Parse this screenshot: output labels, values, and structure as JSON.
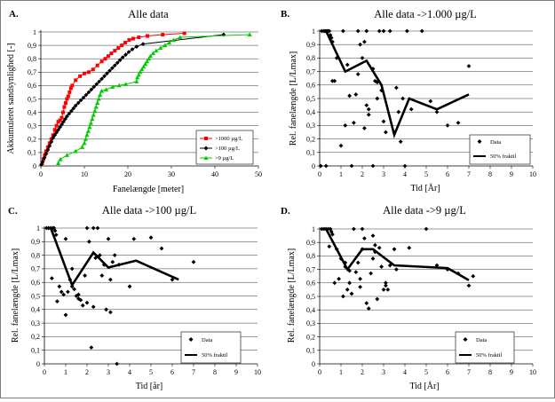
{
  "chart_data": [
    {
      "type": "line",
      "panel_letter": "A.",
      "title": "Alle data",
      "xlabel": "Fanelængde [meter]",
      "ylabel": "Akkumuleret sandsynlighed [-]",
      "xlim": [
        0,
        50
      ],
      "ylim": [
        0,
        1
      ],
      "x_ticks": [
        "0",
        "10",
        "20",
        "30",
        "40",
        "50"
      ],
      "y_ticks": [
        "0",
        "0,1",
        "0,2",
        "0,3",
        "0,4",
        "0,5",
        "0,6",
        "0,7",
        "0,8",
        "0,9",
        "1"
      ],
      "legend_position": "bottom-right",
      "series": [
        {
          "name": ">1000 µg/L",
          "color": "#ff0000",
          "marker": "square",
          "x": [
            0.3,
            0.6,
            0.9,
            1.2,
            1.6,
            2.0,
            2.4,
            2.8,
            3.2,
            3.6,
            4.0,
            4.4,
            4.8,
            5.1,
            5.4,
            5.7,
            6.0,
            6.3,
            6.6,
            6.9,
            7.2,
            8.0,
            9.0,
            10.0,
            11.0,
            12.0,
            13.0,
            14.0,
            14.8,
            15.5,
            16.2,
            17.0,
            17.8,
            18.6,
            19.4,
            20.3,
            21.2,
            22.5,
            24.5,
            28.0,
            33.0
          ],
          "y": [
            0.02,
            0.05,
            0.08,
            0.11,
            0.14,
            0.17,
            0.2,
            0.23,
            0.27,
            0.3,
            0.33,
            0.34,
            0.36,
            0.4,
            0.44,
            0.47,
            0.5,
            0.52,
            0.55,
            0.58,
            0.6,
            0.64,
            0.67,
            0.69,
            0.7,
            0.72,
            0.75,
            0.78,
            0.8,
            0.82,
            0.84,
            0.86,
            0.88,
            0.9,
            0.92,
            0.94,
            0.95,
            0.96,
            0.97,
            0.98,
            0.99
          ]
        },
        {
          "name": ">100 µg/L",
          "color": "#000000",
          "marker": "diamond",
          "x": [
            0.1,
            0.4,
            0.8,
            1.2,
            1.6,
            2.0,
            2.4,
            2.8,
            3.2,
            3.6,
            4.0,
            4.4,
            4.8,
            5.2,
            5.6,
            6.0,
            6.5,
            7.0,
            7.5,
            8.0,
            8.6,
            9.2,
            9.8,
            10.4,
            11.0,
            11.6,
            12.2,
            12.8,
            13.4,
            14.0,
            14.6,
            15.2,
            15.8,
            16.4,
            17.0,
            17.6,
            18.2,
            18.8,
            19.5,
            20.2,
            21.0,
            22.0,
            23.5,
            42.0
          ],
          "y": [
            0.01,
            0.03,
            0.06,
            0.09,
            0.12,
            0.15,
            0.18,
            0.21,
            0.23,
            0.25,
            0.27,
            0.29,
            0.31,
            0.33,
            0.35,
            0.37,
            0.39,
            0.41,
            0.43,
            0.45,
            0.47,
            0.49,
            0.51,
            0.53,
            0.55,
            0.57,
            0.59,
            0.61,
            0.63,
            0.65,
            0.67,
            0.69,
            0.71,
            0.73,
            0.75,
            0.77,
            0.79,
            0.81,
            0.83,
            0.85,
            0.87,
            0.89,
            0.91,
            0.98
          ]
        },
        {
          "name": ">9 µg/L",
          "color": "#00cc00",
          "marker": "triangle",
          "x": [
            4.0,
            4.5,
            6.0,
            8.0,
            9.5,
            10.0,
            10.3,
            10.6,
            10.9,
            11.2,
            11.5,
            11.8,
            12.1,
            12.4,
            12.7,
            13.0,
            13.3,
            13.6,
            14.0,
            15.0,
            16.5,
            18.0,
            19.5,
            22.0,
            22.2,
            22.5,
            22.8,
            23.2,
            23.6,
            24.0,
            24.4,
            24.8,
            25.2,
            25.8,
            26.5,
            27.5,
            28.5,
            29.5,
            30.5,
            32.0,
            48.0
          ],
          "y": [
            0.02,
            0.05,
            0.08,
            0.11,
            0.14,
            0.17,
            0.2,
            0.23,
            0.26,
            0.29,
            0.32,
            0.35,
            0.38,
            0.41,
            0.44,
            0.47,
            0.5,
            0.53,
            0.56,
            0.57,
            0.59,
            0.6,
            0.61,
            0.63,
            0.66,
            0.68,
            0.7,
            0.72,
            0.74,
            0.76,
            0.78,
            0.8,
            0.82,
            0.84,
            0.86,
            0.88,
            0.9,
            0.92,
            0.94,
            0.96,
            0.98
          ]
        }
      ]
    },
    {
      "type": "scatter",
      "panel_letter": "B.",
      "title": "Alle data ->1.000 µg/L",
      "xlabel": "Tid [År]",
      "ylabel": "Rel. fanelængde [L/Lmax]",
      "xlim": [
        0,
        10
      ],
      "ylim": [
        0,
        1
      ],
      "x_ticks": [
        "0",
        "1",
        "2",
        "3",
        "4",
        "5",
        "6",
        "7",
        "8",
        "9",
        "10"
      ],
      "y_ticks": [
        "0",
        "0,1",
        "0,2",
        "0,3",
        "0,4",
        "0,5",
        "0,6",
        "0,7",
        "0,8",
        "0,9",
        "1"
      ],
      "legend_position": "bottom-right",
      "legend": {
        "data_label": "Data",
        "line_label": "50% fraktil"
      },
      "scatter": {
        "x": [
          0.1,
          0.2,
          0.25,
          0.3,
          0.35,
          0.4,
          0.45,
          0.5,
          0.55,
          0.6,
          0.7,
          0.8,
          1.0,
          1.2,
          1.3,
          1.6,
          1.7,
          1.8,
          2.0,
          2.1,
          2.2,
          2.3,
          2.5,
          2.6,
          2.7,
          2.8,
          3.0,
          3.1,
          3.3,
          3.5,
          3.6,
          3.7,
          3.9,
          4.1,
          4.3,
          4.8,
          5.2,
          5.5,
          6.0,
          6.5,
          7.0,
          0.05,
          0.3,
          1.5,
          1.8,
          2.2,
          2.5,
          3.0,
          4.0,
          1.1,
          1.9,
          2.3,
          2.1,
          2.9,
          2.7,
          3.8,
          1.4,
          0.6
        ],
        "y": [
          1,
          1,
          1,
          1,
          1,
          1,
          1,
          0.97,
          0.95,
          0.92,
          0.63,
          0.8,
          0.15,
          0.3,
          0.75,
          0.32,
          0.53,
          0.68,
          0.8,
          0.92,
          0.45,
          0.38,
          0.72,
          0.63,
          0.62,
          1,
          0.33,
          0.25,
          1,
          0.25,
          0.58,
          0.4,
          0.5,
          1,
          0.42,
          1,
          0.48,
          0.4,
          0.3,
          0.32,
          0.74,
          0,
          0,
          0,
          1,
          1,
          0,
          1,
          0,
          1,
          0.9,
          0.42,
          0.28,
          0.56,
          0.5,
          0.18,
          0.52,
          0.63
        ]
      },
      "median_line": {
        "x": [
          0.3,
          1.2,
          2.2,
          2.9,
          3.5,
          4.2,
          5.5,
          7.0
        ],
        "y": [
          1,
          0.7,
          0.78,
          0.6,
          0.23,
          0.5,
          0.42,
          0.53
        ]
      }
    },
    {
      "type": "scatter",
      "panel_letter": "C.",
      "title": "Alle data ->100 µg/L",
      "xlabel": "Tid [år]",
      "ylabel": "Rel. fanelængde [L/Lmax]",
      "xlim": [
        0,
        10
      ],
      "ylim": [
        0,
        1
      ],
      "x_ticks": [
        "0",
        "1",
        "2",
        "3",
        "4",
        "5",
        "6",
        "7",
        "8",
        "9",
        "10"
      ],
      "y_ticks": [
        "0",
        "0,1",
        "0,2",
        "0,3",
        "0,4",
        "0,5",
        "0,6",
        "0,7",
        "0,8",
        "0,9",
        "1"
      ],
      "legend_position": "bottom-right",
      "legend": {
        "data_label": "Data",
        "line_label": "50% fraktil"
      },
      "scatter": {
        "x": [
          0.1,
          0.2,
          0.3,
          0.4,
          0.45,
          0.5,
          0.55,
          0.6,
          0.7,
          0.8,
          0.9,
          1.0,
          1.1,
          1.2,
          1.3,
          1.4,
          1.5,
          1.6,
          1.7,
          1.8,
          1.9,
          2.0,
          2.1,
          2.2,
          2.3,
          2.4,
          2.5,
          2.6,
          2.7,
          2.8,
          2.9,
          3.0,
          3.1,
          3.2,
          3.3,
          3.4,
          3.5,
          4.0,
          4.2,
          5.0,
          5.5,
          6.0,
          7.0,
          0.35,
          1.0,
          1.6,
          2.3,
          3.1,
          1.3,
          2.0
        ],
        "y": [
          1,
          1,
          1,
          1,
          1,
          0.98,
          0.95,
          0.46,
          0.57,
          0.53,
          0.51,
          0.36,
          0.53,
          0.62,
          0.57,
          0.55,
          0.5,
          0.48,
          0.47,
          0.43,
          0.65,
          1,
          0.9,
          0.12,
          1,
          0.78,
          1,
          0.8,
          0.65,
          0.73,
          0.4,
          0.92,
          0.38,
          0.75,
          0.8,
          0,
          0.73,
          0.57,
          0.92,
          0.93,
          0.85,
          0.62,
          0.75,
          0.63,
          0.92,
          0.51,
          0.42,
          0.62,
          0.7,
          0.45
        ]
      },
      "median_line": {
        "x": [
          0.3,
          1.3,
          2.3,
          3.0,
          4.3,
          6.3
        ],
        "y": [
          1,
          0.58,
          0.82,
          0.71,
          0.76,
          0.62
        ]
      }
    },
    {
      "type": "scatter",
      "panel_letter": "D.",
      "title": "Alle data ->9 µg/L",
      "xlabel": "Tid [År]",
      "ylabel": "Rel. fanelængde [L/Lmax]",
      "xlim": [
        0,
        10
      ],
      "ylim": [
        0,
        1
      ],
      "x_ticks": [
        "0",
        "1",
        "2",
        "3",
        "4",
        "5",
        "6",
        "7",
        "8",
        "9",
        "10"
      ],
      "y_ticks": [
        "0",
        "0,1",
        "0,2",
        "0,3",
        "0,4",
        "0,5",
        "0,6",
        "0,7",
        "0,8",
        "0,9",
        "1"
      ],
      "legend_position": "bottom-right",
      "legend": {
        "data_label": "Data",
        "line_label": "50% fraktil"
      },
      "scatter": {
        "x": [
          0.1,
          0.2,
          0.3,
          0.4,
          0.5,
          0.55,
          0.6,
          0.7,
          0.8,
          0.9,
          1.0,
          1.1,
          1.2,
          1.3,
          1.4,
          1.5,
          1.6,
          1.7,
          1.8,
          1.9,
          2.0,
          2.1,
          2.2,
          2.3,
          2.4,
          2.5,
          2.6,
          2.7,
          2.8,
          2.9,
          3.0,
          3.1,
          3.2,
          3.3,
          3.5,
          3.6,
          4.2,
          5.0,
          5.5,
          6.0,
          6.5,
          7.0,
          7.2,
          1.2,
          2.0,
          2.5,
          0.45,
          1.9,
          2.6,
          3.1,
          1.4
        ],
        "y": [
          1,
          1,
          1,
          1,
          1,
          0.98,
          0.96,
          0.6,
          0.85,
          0.63,
          0.78,
          0.5,
          0.72,
          0.55,
          0.6,
          0.52,
          1,
          0.68,
          0.75,
          0.57,
          1,
          0.93,
          0.45,
          0.41,
          0.67,
          0.95,
          0.88,
          0.48,
          0.86,
          0.72,
          0.55,
          0.6,
          0.55,
          0.73,
          0.85,
          0.7,
          0.86,
          1,
          0.73,
          0.7,
          0.67,
          0.58,
          0.65,
          0.75,
          0.85,
          0.78,
          0.87,
          0.63,
          0.83,
          0.58,
          0.69
        ]
      },
      "median_line": {
        "x": [
          0.3,
          1.3,
          2.0,
          2.5,
          3.5,
          6.0,
          7.0
        ],
        "y": [
          1,
          0.7,
          0.85,
          0.85,
          0.73,
          0.71,
          0.62
        ]
      }
    }
  ]
}
